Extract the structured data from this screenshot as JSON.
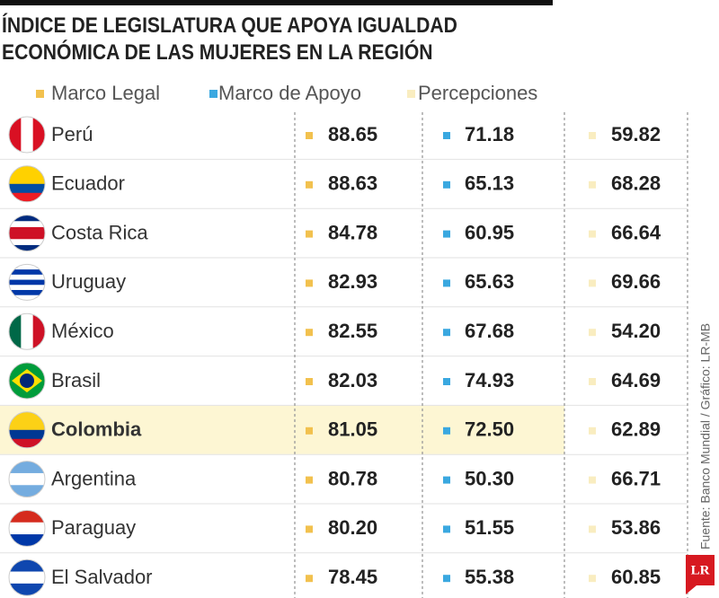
{
  "title": "ÍNDICE DE LEGISLATURA QUE APOYA IGUALDAD ECONÓMICA DE LAS MUJERES EN LA REGIÓN",
  "legend": [
    {
      "label": "Marco Legal",
      "color": "#f2c14e"
    },
    {
      "label": "Marco de Apoyo",
      "color": "#3aa8e0"
    },
    {
      "label": "Percepciones",
      "color": "#f9edc0"
    }
  ],
  "table": {
    "highlight_row": 6,
    "rows": [
      [
        "Perú",
        "88.65",
        "71.18",
        "59.82"
      ],
      [
        "Ecuador",
        "88.63",
        "65.13",
        "68.28"
      ],
      [
        "Costa Rica",
        "84.78",
        "60.95",
        "66.64"
      ],
      [
        "Uruguay",
        "82.93",
        "65.63",
        "69.66"
      ],
      [
        "México",
        "82.55",
        "67.68",
        "54.20"
      ],
      [
        "Brasil",
        "82.03",
        "74.93",
        "64.69"
      ],
      [
        "Colombia",
        "81.05",
        "72.50",
        "62.89"
      ],
      [
        "Argentina",
        "80.78",
        "50.30",
        "66.71"
      ],
      [
        "Paraguay",
        "80.20",
        "51.55",
        "53.86"
      ],
      [
        "El Salvador",
        "78.45",
        "55.38",
        "60.85"
      ]
    ]
  },
  "source": "Fuente: Banco Mundial / Gráfico: LR-MB",
  "logo": "LR"
}
